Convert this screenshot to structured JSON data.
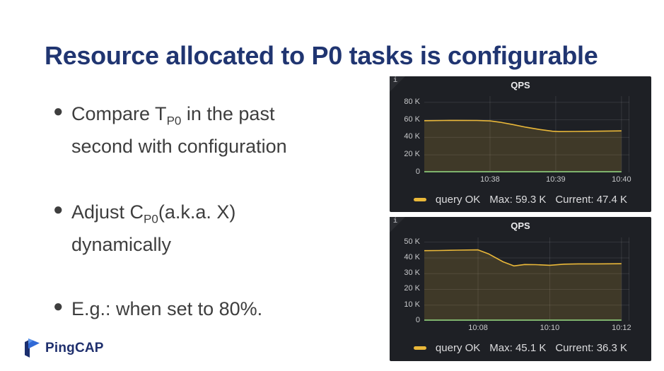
{
  "slide": {
    "title": "Resource allocated to P0 tasks is configurable",
    "title_color": "#203571",
    "bullet_char": "●",
    "bullets": [
      {
        "segments": [
          [
            "t",
            "Compare T"
          ],
          [
            "sub",
            "P0"
          ],
          [
            "t",
            " in the past\nsecond with configuration"
          ]
        ]
      },
      {
        "segments": [
          [
            "t",
            "Adjust C"
          ],
          [
            "sub",
            "P0"
          ],
          [
            "t",
            "(a.k.a. X)\ndynamically"
          ]
        ]
      },
      {
        "segments": [
          [
            "t",
            "E.g.: when set to 80%."
          ]
        ]
      }
    ],
    "logo": {
      "text": "PingCAP",
      "text_color": "#1f2f6d",
      "mark_dark": "#1b2e6e",
      "mark_blue": "#3069d6",
      "mark_light": "#5b93ea"
    }
  },
  "chart_data": [
    {
      "type": "line",
      "title": "QPS",
      "info_icon": "i",
      "series_name": "query OK",
      "legend": {
        "series": "query OK",
        "max": "Max: 59.3 K",
        "current": "Current: 47.4 K"
      },
      "unit": "K",
      "ylim": [
        0,
        87
      ],
      "grid": true,
      "legend_position": "bottom",
      "y_ticks": [
        {
          "v": 80,
          "label": "80 K"
        },
        {
          "v": 60,
          "label": "60 K"
        },
        {
          "v": 40,
          "label": "40 K"
        },
        {
          "v": 20,
          "label": "20 K"
        },
        {
          "v": 0,
          "label": "0"
        }
      ],
      "x_domain": [
        0,
        3.12
      ],
      "x_ticks": [
        {
          "t": 1,
          "label": "10:38"
        },
        {
          "t": 2,
          "label": "10:39"
        },
        {
          "t": 3,
          "label": "10:40"
        }
      ],
      "points": [
        [
          0,
          59.0
        ],
        [
          0.3,
          59.2
        ],
        [
          0.5,
          59.3
        ],
        [
          0.8,
          59.2
        ],
        [
          1.0,
          58.7
        ],
        [
          1.15,
          57.3
        ],
        [
          1.35,
          54.5
        ],
        [
          1.55,
          51.5
        ],
        [
          1.75,
          49.0
        ],
        [
          1.95,
          47.0
        ],
        [
          2.05,
          46.6
        ],
        [
          2.3,
          46.7
        ],
        [
          2.6,
          47.0
        ],
        [
          3.0,
          47.4
        ]
      ],
      "colors": {
        "line": "#eab839",
        "fill": "rgba(234,184,57,0.17)",
        "baseline": "#7eb26d",
        "bg": "#1e2025",
        "grid": "rgba(255,255,255,0.10)",
        "text": "#c9cacc"
      }
    },
    {
      "type": "line",
      "title": "QPS",
      "info_icon": "i",
      "series_name": "query OK",
      "legend": {
        "series": "query OK",
        "max": "Max: 45.1 K",
        "current": "Current: 36.3 K"
      },
      "unit": "K",
      "ylim": [
        0,
        53
      ],
      "grid": true,
      "legend_position": "bottom",
      "y_ticks": [
        {
          "v": 50,
          "label": "50 K"
        },
        {
          "v": 40,
          "label": "40 K"
        },
        {
          "v": 30,
          "label": "30 K"
        },
        {
          "v": 20,
          "label": "20 K"
        },
        {
          "v": 10,
          "label": "10 K"
        },
        {
          "v": 0,
          "label": "0"
        }
      ],
      "x_domain": [
        0,
        5.72
      ],
      "x_ticks": [
        {
          "t": 1.5,
          "label": "10:08"
        },
        {
          "t": 3.5,
          "label": "10:10"
        },
        {
          "t": 5.5,
          "label": "10:12"
        }
      ],
      "points": [
        [
          0,
          44.6
        ],
        [
          0.4,
          44.7
        ],
        [
          0.9,
          44.9
        ],
        [
          1.5,
          45.1
        ],
        [
          1.8,
          42.5
        ],
        [
          2.2,
          37.5
        ],
        [
          2.5,
          34.9
        ],
        [
          2.8,
          35.8
        ],
        [
          3.1,
          35.7
        ],
        [
          3.5,
          35.3
        ],
        [
          3.9,
          36.0
        ],
        [
          4.3,
          36.2
        ],
        [
          4.8,
          36.2
        ],
        [
          5.5,
          36.3
        ]
      ],
      "colors": {
        "line": "#eab839",
        "fill": "rgba(234,184,57,0.17)",
        "baseline": "#7eb26d",
        "bg": "#1e2025",
        "grid": "rgba(255,255,255,0.10)",
        "text": "#c9cacc"
      }
    }
  ]
}
